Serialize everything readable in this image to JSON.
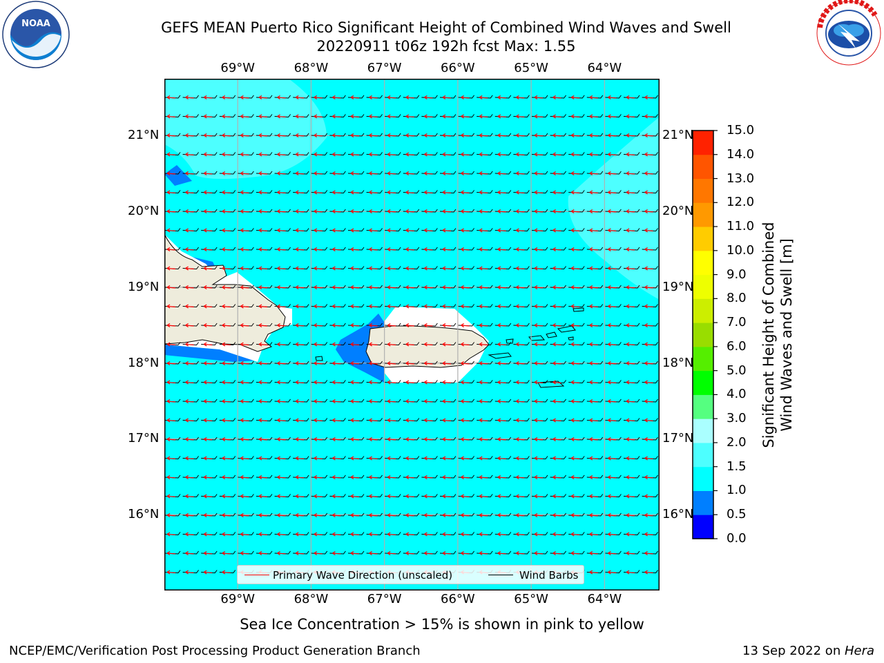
{
  "title_line1": "GEFS MEAN Puerto Rico Significant Height of Combined Wind Waves and Swell",
  "title_line2": "20220911 t06z 192h fcst   Max: 1.55",
  "logos": {
    "noaa": {
      "icon": "noaa-logo",
      "text": "NOAA",
      "ring_text": "NATIONAL OCEANIC AND ATMOSPHERIC ADMINISTRATION · U.S. DEPARTMENT OF COMMERCE"
    },
    "nws": {
      "icon": "nws-logo",
      "ring_text": "NATIONAL WEATHER SERVICE"
    }
  },
  "map": {
    "lon_ticks": [
      "69°W",
      "68°W",
      "67°W",
      "66°W",
      "65°W",
      "64°W"
    ],
    "lat_ticks": [
      "21°N",
      "20°N",
      "19°N",
      "18°N",
      "17°N",
      "16°N"
    ],
    "lon_values": [
      -69,
      -68,
      -67,
      -66,
      -65,
      -64
    ],
    "lat_values": [
      21,
      20,
      19,
      18,
      17,
      16
    ],
    "lon_range": [
      -70,
      -63.25
    ],
    "lat_range": [
      15,
      21.75
    ],
    "grid": true,
    "colors": {
      "ocean": "#00ffff",
      "ocean_light": "#4dffff",
      "land": "#eeecdc",
      "low": "#007fff",
      "grid": "#b0b0b0",
      "wave_dir": "#ff0000",
      "barbs": "#000000"
    }
  },
  "legend": {
    "wave_dir": "Primary Wave Direction (unscaled)",
    "wind_barbs": "Wind Barbs"
  },
  "colorbar": {
    "label_line1": "Significant Height of Combined",
    "label_line2": "Wind Waves and Swell [m]",
    "ticks": [
      "0.0",
      "0.5",
      "1.0",
      "1.5",
      "2.0",
      "3.0",
      "4.0",
      "5.0",
      "6.0",
      "7.0",
      "8.0",
      "9.0",
      "10.0",
      "11.0",
      "12.0",
      "13.0",
      "14.0",
      "15.0"
    ],
    "colors": [
      "#0000ff",
      "#007fff",
      "#00ffff",
      "#4dffff",
      "#aaffff",
      "#55ff80",
      "#00ff00",
      "#55ee00",
      "#99dd00",
      "#ccee00",
      "#eeff00",
      "#ffff00",
      "#ffcc00",
      "#ff9900",
      "#ff7700",
      "#ff5500",
      "#ff2200"
    ]
  },
  "ice_note": "Sea Ice Concentration > 15% is shown in pink to yellow",
  "footer_left": "NCEP/EMC/Verification Post Processing Product Generation Branch",
  "footer_right_date": "13 Sep 2022 on ",
  "footer_right_host": "Hera"
}
